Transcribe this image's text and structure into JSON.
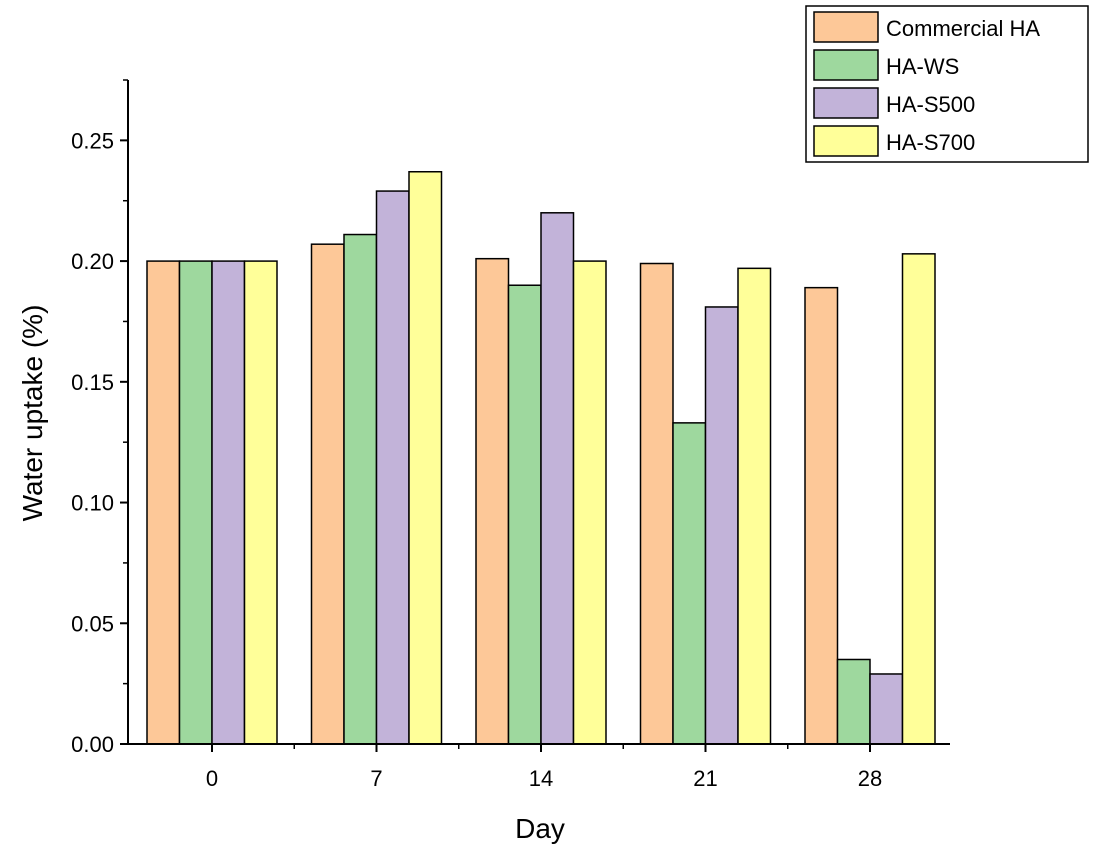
{
  "chart_data": {
    "type": "bar",
    "xlabel": "Day",
    "ylabel": "Water uptake (%)",
    "categories": [
      "0",
      "7",
      "14",
      "21",
      "28"
    ],
    "ylim": [
      0,
      0.275
    ],
    "yticks": [
      "0.00",
      "0.05",
      "0.10",
      "0.15",
      "0.20",
      "0.25"
    ],
    "ytick_values": [
      0,
      0.05,
      0.1,
      0.15,
      0.2,
      0.25
    ],
    "grid": false,
    "legend_position": "top-right",
    "series": [
      {
        "name": "Commercial HA",
        "color": "#FDC898",
        "values": [
          0.2,
          0.207,
          0.201,
          0.199,
          0.189
        ]
      },
      {
        "name": "HA-WS",
        "color": "#9ED89E",
        "values": [
          0.2,
          0.211,
          0.19,
          0.133,
          0.035
        ]
      },
      {
        "name": "HA-S500",
        "color": "#C2B3D9",
        "values": [
          0.2,
          0.229,
          0.22,
          0.181,
          0.029
        ]
      },
      {
        "name": "HA-S700",
        "color": "#FFFF99",
        "values": [
          0.2,
          0.237,
          0.2,
          0.197,
          0.203
        ]
      }
    ]
  }
}
